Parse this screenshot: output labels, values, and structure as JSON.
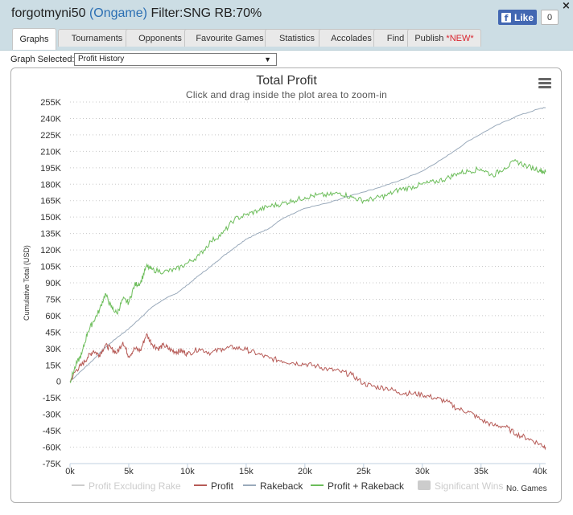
{
  "window": {
    "player": "forgotmyni50",
    "site": "(Ongame)",
    "filter": "Filter:SNG RB:70%",
    "close_label": "×"
  },
  "facebook": {
    "like_label": "Like",
    "count": "0"
  },
  "tabs": [
    {
      "label": "Graphs",
      "active": true
    },
    {
      "label": "Tournaments"
    },
    {
      "label": "Opponents"
    },
    {
      "label": "Favourite Games"
    },
    {
      "label": "Statistics"
    },
    {
      "label": "Accolades"
    },
    {
      "label": "Find"
    },
    {
      "label": "Publish",
      "badge": "*NEW*"
    }
  ],
  "graph_selector": {
    "label": "Graph Selected:",
    "value": "Profit History"
  },
  "chart_data": {
    "type": "line",
    "title": "Total Profit",
    "subtitle": "Click and drag inside the plot area to zoom-in",
    "ylabel": "Cumulative Total (USD)",
    "xlabel": "No. Games",
    "xlim": [
      0,
      40500
    ],
    "ylim": [
      -75000,
      255000
    ],
    "x_ticks": [
      {
        "v": 0,
        "label": "0k"
      },
      {
        "v": 5000,
        "label": "5k"
      },
      {
        "v": 10000,
        "label": "10k"
      },
      {
        "v": 15000,
        "label": "15k"
      },
      {
        "v": 20000,
        "label": "20k"
      },
      {
        "v": 25000,
        "label": "25k"
      },
      {
        "v": 30000,
        "label": "30k"
      },
      {
        "v": 35000,
        "label": "35k"
      },
      {
        "v": 40000,
        "label": "40k"
      }
    ],
    "y_ticks": [
      {
        "v": 255000,
        "label": "255K"
      },
      {
        "v": 240000,
        "label": "240K"
      },
      {
        "v": 225000,
        "label": "225K"
      },
      {
        "v": 210000,
        "label": "210K"
      },
      {
        "v": 195000,
        "label": "195K"
      },
      {
        "v": 180000,
        "label": "180K"
      },
      {
        "v": 165000,
        "label": "165K"
      },
      {
        "v": 150000,
        "label": "150K"
      },
      {
        "v": 135000,
        "label": "135K"
      },
      {
        "v": 120000,
        "label": "120K"
      },
      {
        "v": 105000,
        "label": "105K"
      },
      {
        "v": 90000,
        "label": "90K"
      },
      {
        "v": 75000,
        "label": "75K"
      },
      {
        "v": 60000,
        "label": "60K"
      },
      {
        "v": 45000,
        "label": "45K"
      },
      {
        "v": 30000,
        "label": "30K"
      },
      {
        "v": 15000,
        "label": "15K"
      },
      {
        "v": 0,
        "label": "0"
      },
      {
        "v": -15000,
        "label": "-15K"
      },
      {
        "v": -30000,
        "label": "-30K"
      },
      {
        "v": -45000,
        "label": "-45K"
      },
      {
        "v": -60000,
        "label": "-60K"
      },
      {
        "v": -75000,
        "label": "-75K"
      }
    ],
    "grid": "horizontal-dotted",
    "legend_position": "bottom",
    "series": [
      {
        "name": "Profit",
        "color": "#b65a56",
        "visible": true,
        "x": [
          0,
          500,
          1000,
          1500,
          2000,
          2500,
          3000,
          3500,
          4000,
          4500,
          5000,
          5500,
          6000,
          6500,
          7000,
          7500,
          8000,
          8500,
          9000,
          9500,
          10000,
          11000,
          12000,
          13000,
          14000,
          15000,
          16000,
          17000,
          18000,
          19000,
          20000,
          21000,
          22000,
          23000,
          24000,
          25000,
          26000,
          27000,
          28000,
          29000,
          30000,
          31000,
          32000,
          33000,
          34000,
          35000,
          36000,
          37000,
          38000,
          39000,
          40000,
          40500
        ],
        "y": [
          0,
          10000,
          15000,
          22000,
          28000,
          24000,
          33000,
          30000,
          26000,
          36000,
          23000,
          30000,
          28000,
          43000,
          34000,
          30000,
          33000,
          29000,
          27000,
          28000,
          25000,
          30000,
          26000,
          30000,
          31000,
          29000,
          25000,
          21000,
          19000,
          17000,
          16000,
          14000,
          11000,
          9000,
          6000,
          -2000,
          -5000,
          -6000,
          -10000,
          -11000,
          -12000,
          -15000,
          -18000,
          -25000,
          -28000,
          -35000,
          -40000,
          -41000,
          -48000,
          -52000,
          -57000,
          -60000
        ]
      },
      {
        "name": "Rakeback",
        "color": "#9aaabb",
        "visible": true,
        "x": [
          0,
          1000,
          2000,
          3000,
          4000,
          5000,
          6000,
          7000,
          8000,
          9000,
          10000,
          11000,
          12000,
          13000,
          14000,
          15000,
          16000,
          17000,
          18000,
          19000,
          20000,
          22000,
          24000,
          26000,
          28000,
          30000,
          32000,
          34000,
          36000,
          38000,
          40000,
          40500
        ],
        "y": [
          0,
          10000,
          20000,
          31000,
          40000,
          48000,
          58000,
          68000,
          75000,
          80000,
          88000,
          97000,
          105000,
          114000,
          122000,
          130000,
          135000,
          140000,
          148000,
          153000,
          158000,
          163000,
          170000,
          176000,
          183000,
          192000,
          205000,
          220000,
          232000,
          242000,
          249000,
          250000
        ]
      },
      {
        "name": "Profit + Rakeback",
        "color": "#6cbd5a",
        "visible": true,
        "x": [
          0,
          500,
          1000,
          1500,
          2000,
          2500,
          3000,
          3500,
          4000,
          4500,
          5000,
          5500,
          6000,
          6500,
          7000,
          8000,
          9000,
          10000,
          11000,
          12000,
          13000,
          14000,
          15000,
          16000,
          17000,
          18000,
          19000,
          20000,
          21000,
          22000,
          23000,
          24000,
          25000,
          26000,
          27000,
          28000,
          29000,
          30000,
          31000,
          32000,
          33000,
          34000,
          35000,
          36000,
          37000,
          38000,
          39000,
          40000,
          40500
        ],
        "y": [
          0,
          15000,
          25000,
          45000,
          55000,
          65000,
          80000,
          68000,
          62000,
          75000,
          72000,
          88000,
          90000,
          105000,
          102000,
          100000,
          102000,
          108000,
          115000,
          128000,
          135000,
          148000,
          152000,
          156000,
          160000,
          162000,
          165000,
          168000,
          170000,
          170000,
          172000,
          168000,
          165000,
          167000,
          170000,
          175000,
          177000,
          180000,
          182000,
          185000,
          190000,
          192000,
          194000,
          188000,
          195000,
          201000,
          196000,
          193000,
          191000
        ]
      },
      {
        "name": "Profit Excluding Rake",
        "color": "#cccccc",
        "visible": false
      },
      {
        "name": "Significant Wins",
        "color": "#cccccc",
        "visible": false
      }
    ]
  }
}
